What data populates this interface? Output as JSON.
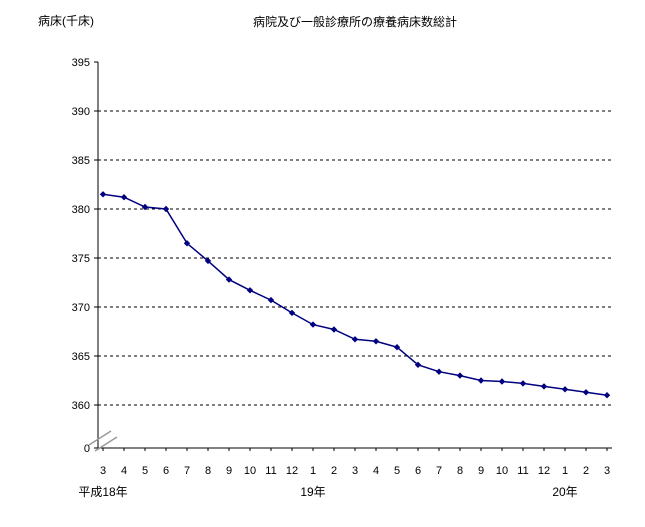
{
  "chart_data": {
    "type": "line",
    "title": "病院及び一般診療所の療養病床数総計",
    "ylabel": "病床(千床)",
    "series": [
      {
        "name": "療養病床数総計",
        "values": [
          381.5,
          381.2,
          380.2,
          380.0,
          376.5,
          374.7,
          372.8,
          371.7,
          370.7,
          369.4,
          368.2,
          367.7,
          366.7,
          366.5,
          365.9,
          364.1,
          363.4,
          363.0,
          362.5,
          362.4,
          362.2,
          361.9,
          361.6,
          361.3,
          361.0
        ]
      }
    ],
    "x_tick_labels": [
      "3",
      "4",
      "5",
      "6",
      "7",
      "8",
      "9",
      "10",
      "11",
      "12",
      "1",
      "2",
      "3",
      "4",
      "5",
      "6",
      "7",
      "8",
      "9",
      "10",
      "11",
      "12",
      "1",
      "2",
      "3"
    ],
    "era_labels": [
      {
        "label": "平成18年",
        "index": 0
      },
      {
        "label": "19年",
        "index": 10
      },
      {
        "label": "20年",
        "index": 22
      }
    ],
    "y_ticks": [
      395,
      390,
      385,
      380,
      375,
      370,
      365,
      360
    ],
    "y_break_label": "0",
    "has_axis_break": true,
    "ylim": [
      360,
      395
    ],
    "grid": "horizontal-dashed",
    "grid_color": "#000000",
    "line_color": "#000080",
    "marker": "diamond",
    "legend": "none"
  }
}
